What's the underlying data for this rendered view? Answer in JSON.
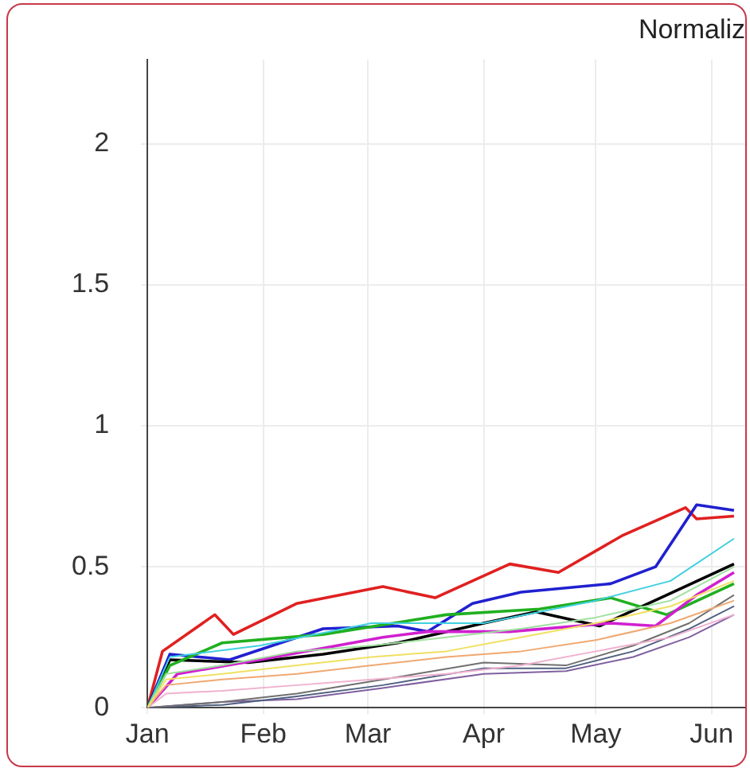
{
  "chart_data": {
    "type": "line",
    "title": "Normaliz",
    "xlim": [
      "--01-01",
      "--06-10"
    ],
    "ylim": [
      0,
      2.3
    ],
    "xticks": [
      {
        "value": "--01-01",
        "label": "Jan"
      },
      {
        "value": "--02-01",
        "label": "Feb"
      },
      {
        "value": "--03-01",
        "label": "Mar"
      },
      {
        "value": "--04-01",
        "label": "Apr"
      },
      {
        "value": "--05-01",
        "label": "May"
      },
      {
        "value": "--06-01",
        "label": "Jun"
      }
    ],
    "yticks": [
      0,
      {
        "value": 0.5,
        "label": "0.5"
      },
      1,
      {
        "value": 1.5,
        "label": "1.5"
      },
      2
    ],
    "grid": true,
    "legend": false,
    "marker": "none",
    "line_style": "solid",
    "series": [
      {
        "color": "#f0e060",
        "x": [
          "--01-01",
          "--01-06",
          "--01-21",
          "--02-10",
          "--03-02",
          "--03-22",
          "--04-11",
          "--05-01",
          "--05-21",
          "--06-07"
        ],
        "values": [
          0,
          0.1,
          0.12,
          0.15,
          0.18,
          0.2,
          0.25,
          0.3,
          0.36,
          0.45
        ]
      },
      {
        "color": "#f0a870",
        "x": [
          "--01-01",
          "--01-06",
          "--01-21",
          "--02-10",
          "--03-02",
          "--03-22",
          "--04-11",
          "--05-01",
          "--05-21",
          "--06-07"
        ],
        "values": [
          0,
          0.08,
          0.1,
          0.12,
          0.15,
          0.18,
          0.2,
          0.24,
          0.3,
          0.38
        ]
      },
      {
        "color": "#f0b0d0",
        "x": [
          "--01-01",
          "--01-06",
          "--01-21",
          "--02-10",
          "--03-02",
          "--03-22",
          "--04-11",
          "--05-01",
          "--05-21",
          "--06-07"
        ],
        "values": [
          0,
          0.05,
          0.06,
          0.08,
          0.1,
          0.12,
          0.15,
          0.2,
          0.25,
          0.33
        ]
      },
      {
        "color": "#a0e0a0",
        "x": [
          "--01-01",
          "--01-06",
          "--01-21",
          "--02-10",
          "--03-02",
          "--03-22",
          "--04-11",
          "--05-01",
          "--05-21",
          "--06-07"
        ],
        "values": [
          0,
          0.12,
          0.15,
          0.2,
          0.22,
          0.25,
          0.28,
          0.32,
          0.38,
          0.5
        ]
      },
      {
        "color": "#707070",
        "x": [
          "--01-01",
          "--01-21",
          "--02-10",
          "--03-05",
          "--04-01",
          "--04-23",
          "--05-11",
          "--05-26",
          "--06-07"
        ],
        "values": [
          0,
          0.02,
          0.05,
          0.1,
          0.16,
          0.15,
          0.22,
          0.3,
          0.4
        ]
      },
      {
        "color": "#506080",
        "x": [
          "--01-01",
          "--01-21",
          "--02-10",
          "--03-05",
          "--04-01",
          "--04-23",
          "--05-11",
          "--05-26",
          "--06-07"
        ],
        "values": [
          0,
          0.01,
          0.04,
          0.08,
          0.14,
          0.14,
          0.2,
          0.28,
          0.36
        ]
      },
      {
        "color": "#8060a0",
        "x": [
          "--01-01",
          "--01-21",
          "--02-10",
          "--03-05",
          "--04-01",
          "--04-23",
          "--05-11",
          "--05-26",
          "--06-07"
        ],
        "values": [
          0,
          0.02,
          0.03,
          0.07,
          0.12,
          0.13,
          0.18,
          0.25,
          0.33
        ]
      },
      {
        "color": "#40d0e0",
        "x": [
          "--01-01",
          "--01-07",
          "--01-31",
          "--03-02",
          "--04-01",
          "--05-01",
          "--05-21",
          "--06-07"
        ],
        "values": [
          0,
          0.18,
          0.22,
          0.3,
          0.3,
          0.38,
          0.45,
          0.6
        ]
      },
      {
        "color": "#d020d0",
        "x": [
          "--01-01",
          "--01-09",
          "--01-31",
          "--03-05",
          "--03-17",
          "--04-08",
          "--05-05",
          "--05-17",
          "--05-28",
          "--06-07"
        ],
        "values": [
          0,
          0.12,
          0.17,
          0.25,
          0.27,
          0.27,
          0.3,
          0.29,
          0.4,
          0.48
        ]
      },
      {
        "color": "#20b020",
        "x": [
          "--01-01",
          "--01-07",
          "--01-21",
          "--02-17",
          "--03-22",
          "--04-16",
          "--05-05",
          "--05-20",
          "--06-07"
        ],
        "values": [
          0,
          0.15,
          0.23,
          0.26,
          0.33,
          0.35,
          0.39,
          0.33,
          0.44
        ]
      },
      {
        "color": "#000000",
        "x": [
          "--01-01",
          "--01-07",
          "--01-28",
          "--02-17",
          "--03-09",
          "--04-01",
          "--04-15",
          "--05-02",
          "--05-20",
          "--06-07"
        ],
        "values": [
          0,
          0.17,
          0.16,
          0.19,
          0.23,
          0.3,
          0.34,
          0.29,
          0.4,
          0.51
        ]
      },
      {
        "color": "#2020d0",
        "x": [
          "--01-01",
          "--01-07",
          "--01-23",
          "--02-17",
          "--03-09",
          "--03-17",
          "--03-29",
          "--04-11",
          "--05-05",
          "--05-17",
          "--05-28",
          "--06-07"
        ],
        "values": [
          0,
          0.19,
          0.17,
          0.28,
          0.29,
          0.27,
          0.37,
          0.41,
          0.44,
          0.5,
          0.72,
          0.7
        ]
      },
      {
        "color": "#e02020",
        "x": [
          "--01-01",
          "--01-05",
          "--01-19",
          "--01-24",
          "--02-10",
          "--03-05",
          "--03-19",
          "--04-08",
          "--04-21",
          "--05-08",
          "--05-25",
          "--05-28",
          "--06-07"
        ],
        "values": [
          0,
          0.2,
          0.33,
          0.26,
          0.37,
          0.43,
          0.39,
          0.51,
          0.48,
          0.61,
          0.71,
          0.67,
          0.68
        ]
      }
    ]
  }
}
